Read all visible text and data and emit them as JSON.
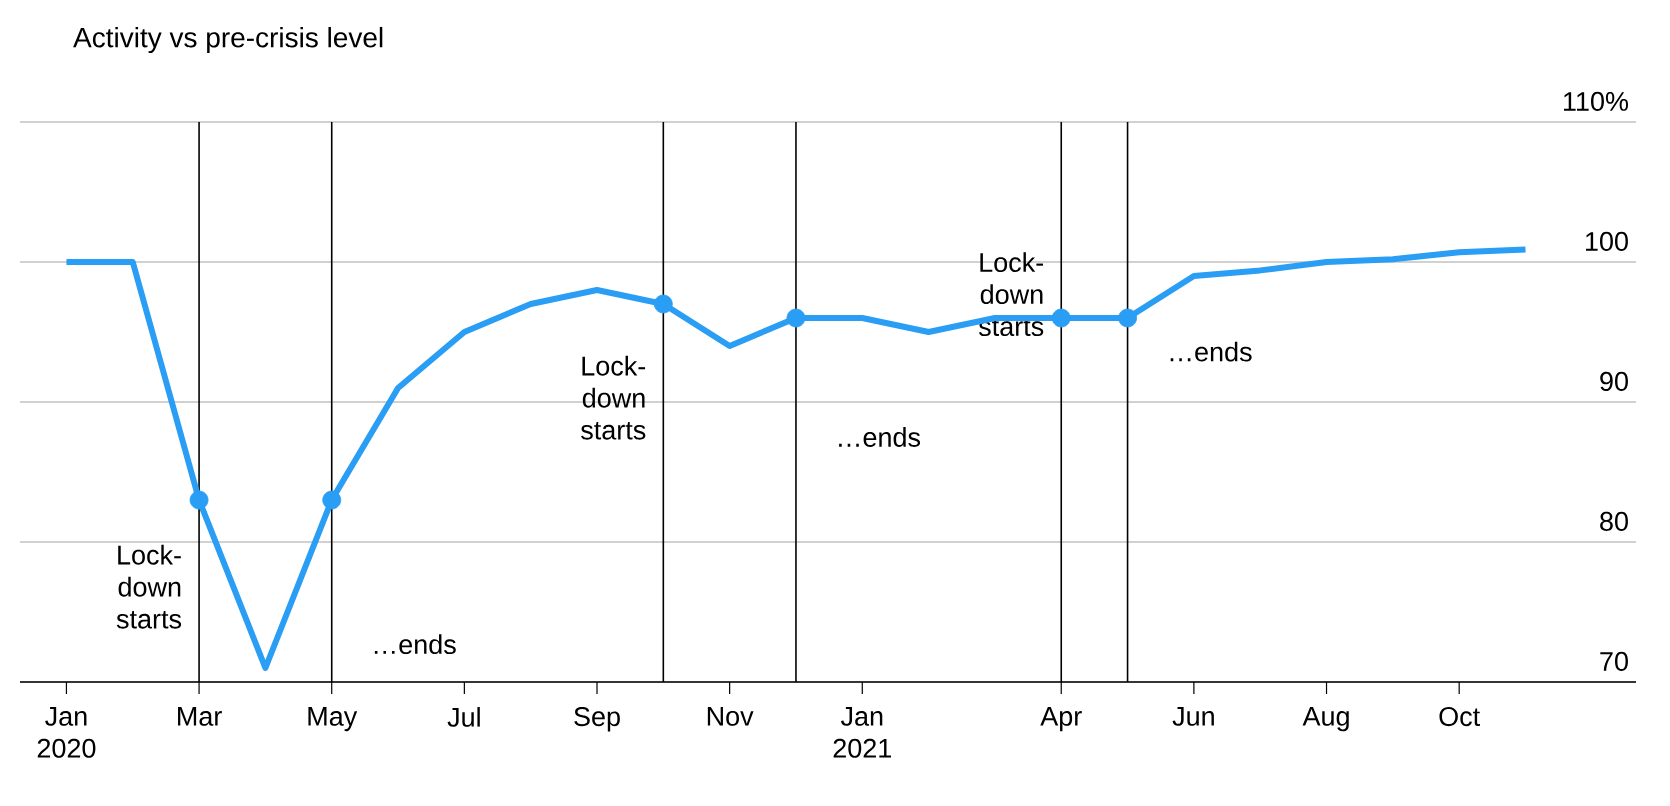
{
  "chart_data": {
    "type": "line",
    "title": "Activity vs pre-crisis level",
    "x": [
      "2020-01",
      "2020-02",
      "2020-03",
      "2020-04",
      "2020-05",
      "2020-06",
      "2020-07",
      "2020-08",
      "2020-09",
      "2020-10",
      "2020-11",
      "2020-12",
      "2021-01",
      "2021-02",
      "2021-03",
      "2021-04",
      "2021-05",
      "2021-06",
      "2021-07",
      "2021-08",
      "2021-09",
      "2021-10",
      "2021-11"
    ],
    "series": [
      {
        "color": "#2a9df4",
        "line_style": "solid",
        "values": [
          100,
          100,
          83,
          71,
          83,
          91,
          95,
          97,
          98,
          97,
          94,
          96,
          96,
          95,
          96,
          96,
          96,
          99,
          99.4,
          100,
          100.2,
          100.7,
          100.9
        ]
      },
      {
        "type": "scatter",
        "marker": "circle",
        "color": "#2a9df4",
        "x": [
          "2020-03",
          "2020-05",
          "2020-10",
          "2020-12",
          "2021-04",
          "2021-05"
        ],
        "values": [
          83,
          83,
          97,
          96,
          96,
          96
        ]
      }
    ],
    "xlim": [
      "2019-12-10",
      "2021-12-21"
    ],
    "xticks": [
      {
        "value": "2020-01",
        "label": "Jan 2020"
      },
      {
        "value": "2020-03",
        "label": "Mar"
      },
      {
        "value": "2020-05",
        "label": "May"
      },
      {
        "value": "2020-07",
        "label": "Jul"
      },
      {
        "value": "2020-09",
        "label": "Sep"
      },
      {
        "value": "2020-11",
        "label": "Nov"
      },
      {
        "value": "2021-01",
        "label": "Jan 2021"
      },
      {
        "value": "2021-04",
        "label": "Apr"
      },
      {
        "value": "2021-06",
        "label": "Jun"
      },
      {
        "value": "2021-08",
        "label": "Aug"
      },
      {
        "value": "2021-10",
        "label": "Oct"
      }
    ],
    "ylim": [
      70,
      110
    ],
    "yticks": [
      70,
      80,
      90,
      100,
      {
        "value": 110,
        "label": "110%"
      }
    ],
    "grid": "y",
    "ref_lines": [
      {
        "axis": "x",
        "value": "2020-03",
        "label": "Lock-down starts",
        "color": "#000000"
      },
      {
        "axis": "x",
        "value": "2020-05",
        "label": "…ends",
        "color": "#000000"
      },
      {
        "axis": "x",
        "value": "2020-10",
        "label": "Lock-down starts",
        "color": "#000000"
      },
      {
        "axis": "x",
        "value": "2020-12",
        "label": "…ends",
        "color": "#000000"
      },
      {
        "axis": "x",
        "value": "2021-04",
        "label": "Lock-down starts",
        "color": "#000000"
      },
      {
        "axis": "x",
        "value": "2021-05",
        "label": "…ends",
        "color": "#000000"
      }
    ]
  }
}
